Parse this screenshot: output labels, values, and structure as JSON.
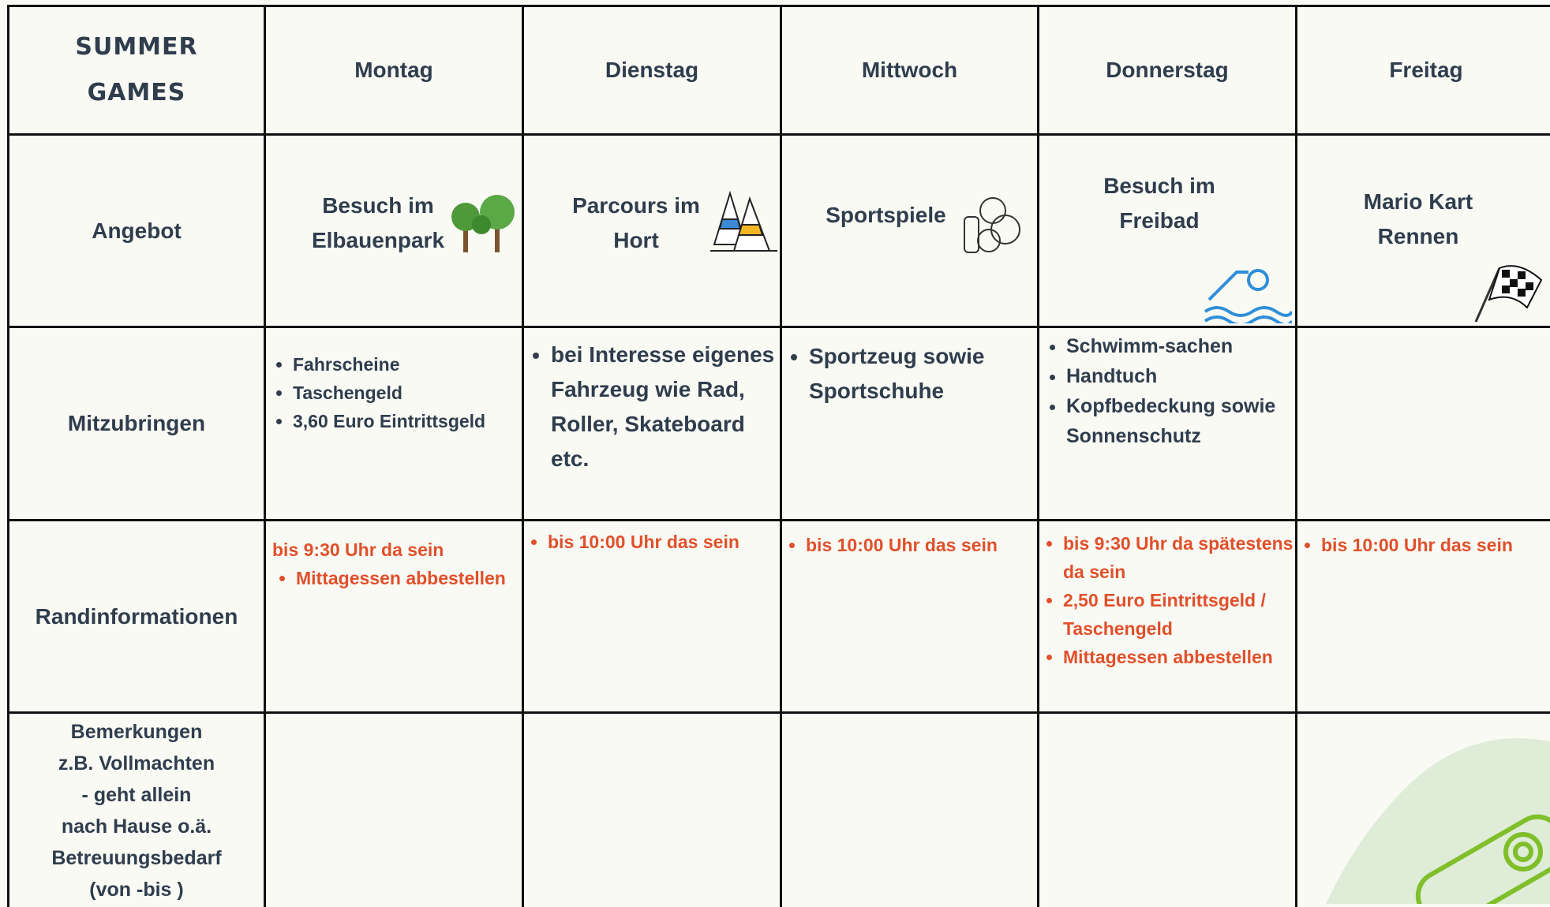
{
  "header": {
    "title_lines": [
      "SUMMER",
      "GAMES"
    ],
    "days": [
      "Montag",
      "Dienstag",
      "Mittwoch",
      "Donnerstag",
      "Freitag"
    ]
  },
  "rows": [
    {
      "label": "Angebot",
      "cells": [
        {
          "text": "Besuch im Elbauenpark"
        },
        {
          "text": "Parcours im Hort"
        },
        {
          "text": "Sportspiele"
        },
        {
          "text": "Besuch im Freibad"
        },
        {
          "text": "Mario Kart Rennen"
        }
      ]
    },
    {
      "label": "Mitzubringen",
      "cells": [
        {
          "items": [
            "Fahrscheine",
            "Taschengeld",
            "3,60 Euro Eintrittsgeld"
          ]
        },
        {
          "items": [
            "bei Interesse eigenes Fahrzeug wie Rad, Roller, Skateboard etc."
          ]
        },
        {
          "items": [
            "Sportzeug sowie Sportschuhe"
          ]
        },
        {
          "items": [
            "Schwimm-sachen",
            "Handtuch",
            "Kopfbedeckung sowie Sonnenschutz"
          ]
        },
        {
          "items": []
        }
      ]
    },
    {
      "label": "Randinformationen",
      "cells": [
        {
          "text": "bis 9:30 Uhr da sein",
          "items": [
            "Mittagessen abbestellen"
          ]
        },
        {
          "items": [
            "bis 10:00 Uhr das sein"
          ]
        },
        {
          "items": [
            "bis 10:00 Uhr das sein"
          ]
        },
        {
          "items": [
            "bis 9:30 Uhr da spätestens da sein",
            "2,50 Euro Eintrittsgeld / Taschengeld",
            "Mittagessen abbestellen"
          ]
        },
        {
          "items": [
            "bis 10:00 Uhr das sein"
          ]
        }
      ]
    },
    {
      "label_lines": [
        "Bemerkungen",
        "z.B. Vollmachten",
        "- geht allein",
        "nach Hause o.ä.",
        "Betreuungsbedarf",
        "(von -bis )"
      ],
      "cells": [
        {
          "items": []
        },
        {
          "items": []
        },
        {
          "items": []
        },
        {
          "items": []
        },
        {
          "items": []
        }
      ]
    }
  ]
}
